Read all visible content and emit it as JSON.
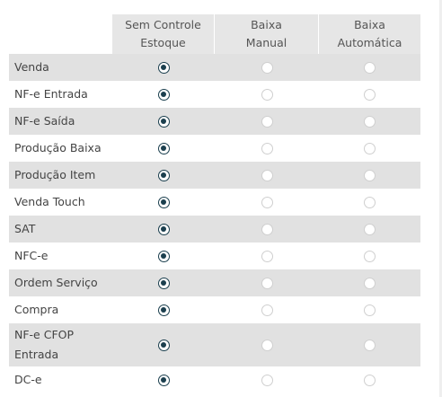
{
  "columns": [
    {
      "label": "Sem Controle\nEstoque"
    },
    {
      "label": "Baixa\nManual"
    },
    {
      "label": "Baixa\nAutomática"
    }
  ],
  "rows": [
    {
      "label": "Venda",
      "selected": 0
    },
    {
      "label": "NF-e Entrada",
      "selected": 0
    },
    {
      "label": "NF-e Saída",
      "selected": 0
    },
    {
      "label": "Produção Baixa",
      "selected": 0
    },
    {
      "label": "Produção Item",
      "selected": 0
    },
    {
      "label": "Venda Touch",
      "selected": 0
    },
    {
      "label": "SAT",
      "selected": 0
    },
    {
      "label": "NFC-e",
      "selected": 0
    },
    {
      "label": "Ordem Serviço",
      "selected": 0
    },
    {
      "label": "Compra",
      "selected": 0
    },
    {
      "label": "NF-e CFOP\nEntrada",
      "selected": 0
    },
    {
      "label": "DC-e",
      "selected": 0
    }
  ],
  "colors": {
    "header_bg": "#e6e6e6",
    "row_shaded_bg": "#e1e1e1",
    "radio_checked": "#1b3f4e",
    "radio_unchecked_border": "#cfcfcf"
  }
}
